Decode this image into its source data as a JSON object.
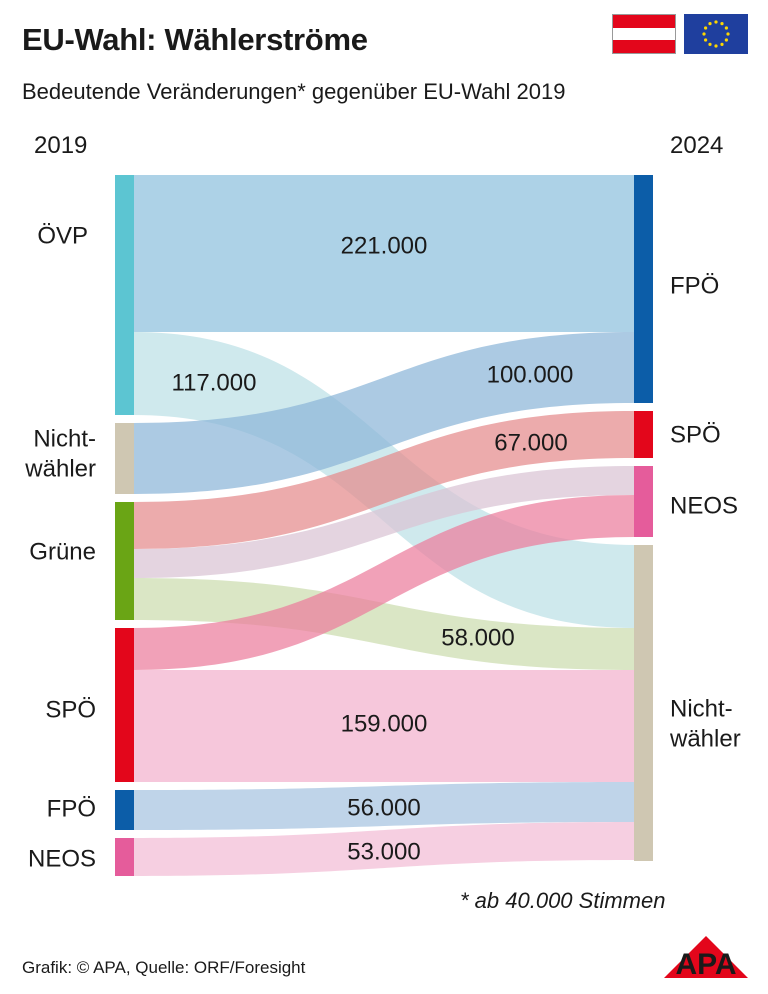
{
  "header": {
    "title": "EU-Wahl: Wählerströme",
    "subtitle": "Bedeutende Veränderungen* gegenüber EU-Wahl 2019"
  },
  "flags": {
    "austria": "flag-icon",
    "eu": "eu-flag-icon"
  },
  "footnote": "* ab 40.000 Stimmen",
  "source": "Grafik: © APA, Quelle: ORF/Foresight",
  "logo_text": "APA",
  "chart_data": {
    "type": "sankey",
    "left_axis_label": "2019",
    "right_axis_label": "2024",
    "source_nodes": [
      {
        "id": "ovp19",
        "name": "ÖVP",
        "color": "#5cc5d2"
      },
      {
        "id": "nw19",
        "name": "Nicht-wähler",
        "color": "#cfc7b2"
      },
      {
        "id": "gr19",
        "name": "Grüne",
        "color": "#6aa515"
      },
      {
        "id": "spo19",
        "name": "SPÖ",
        "color": "#e3061b"
      },
      {
        "id": "fpo19",
        "name": "FPÖ",
        "color": "#0c5da8"
      },
      {
        "id": "neos19",
        "name": "NEOS",
        "color": "#e55c9b"
      }
    ],
    "target_nodes": [
      {
        "id": "fpo24",
        "name": "FPÖ",
        "color": "#0c5da8"
      },
      {
        "id": "spo24",
        "name": "SPÖ",
        "color": "#e3061b"
      },
      {
        "id": "neos24",
        "name": "NEOS",
        "color": "#e55c9b"
      },
      {
        "id": "nw24",
        "name": "Nicht-wähler",
        "color": "#cfc7b2"
      }
    ],
    "flows": [
      {
        "source": "ovp19",
        "target": "fpo24",
        "value": 221000,
        "label": "221.000",
        "color": "#8dc1de"
      },
      {
        "source": "ovp19",
        "target": "nw24",
        "value": 117000,
        "label": "117.000",
        "color": "#bde0e6"
      },
      {
        "source": "nw19",
        "target": "fpo24",
        "value": 100000,
        "label": "100.000",
        "color": "#8cb6d8"
      },
      {
        "source": "gr19",
        "target": "spo24",
        "value": 67000,
        "label": "67.000",
        "color": "#e48a8c"
      },
      {
        "source": "gr19",
        "target": "neos24",
        "value": 40000,
        "label": "",
        "color": "#d9c4d4"
      },
      {
        "source": "gr19",
        "target": "nw24",
        "value": 58000,
        "label": "58.000",
        "color": "#ccdcae"
      },
      {
        "source": "spo19",
        "target": "neos24",
        "value": 60000,
        "label": "",
        "color": "#ec7d9c"
      },
      {
        "source": "spo19",
        "target": "nw24",
        "value": 159000,
        "label": "159.000",
        "color": "#f2b2cd"
      },
      {
        "source": "fpo19",
        "target": "nw24",
        "value": 56000,
        "label": "56.000",
        "color": "#a6c4e0"
      },
      {
        "source": "neos19",
        "target": "nw24",
        "value": 53000,
        "label": "53.000",
        "color": "#f3bdd5"
      }
    ]
  }
}
